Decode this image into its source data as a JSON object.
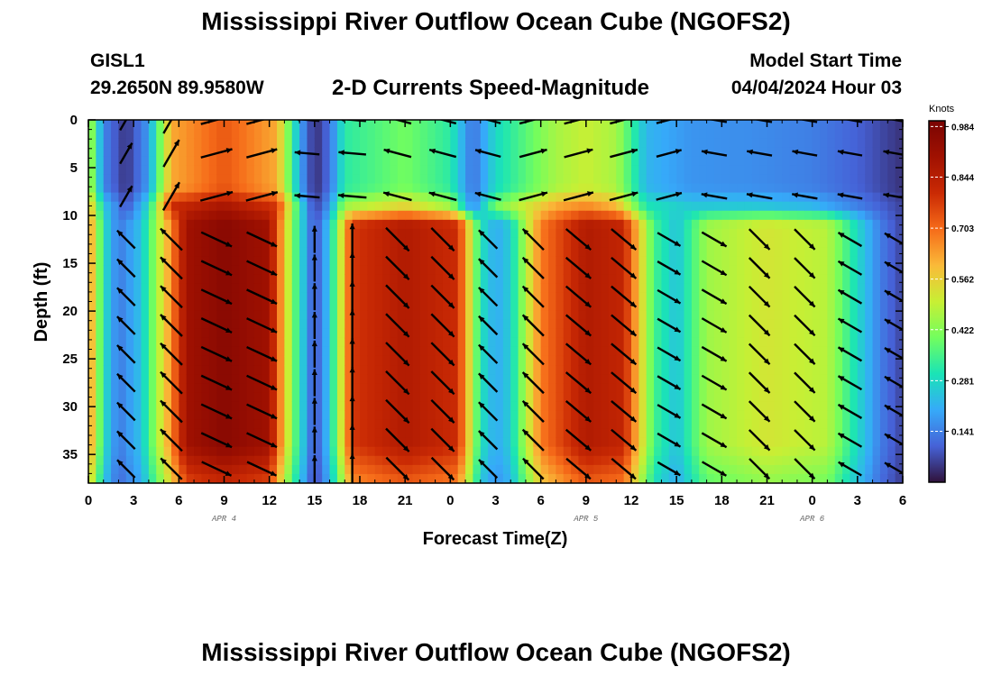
{
  "header": {
    "title": "Mississippi River Outflow Ocean Cube (NGOFS2)",
    "station": "GISL1",
    "coords": "29.2650N  89.9580W",
    "subtitle": "2-D Currents Speed-Magnitude",
    "model_start_label": "Model Start Time",
    "model_start_value": "04/04/2024 Hour 03"
  },
  "footer": {
    "title": "Mississippi River Outflow Ocean Cube (NGOFS2)"
  },
  "chart_data": {
    "type": "heatmap",
    "xlabel": "Forecast Time(Z)",
    "ylabel": "Depth (ft)",
    "x_tick_labels": [
      "0",
      "3",
      "6",
      "9",
      "12",
      "15",
      "18",
      "21",
      "0",
      "3",
      "6",
      "9",
      "12",
      "15",
      "18",
      "21",
      "0",
      "3",
      "6"
    ],
    "date_labels": [
      {
        "text": "APR 4",
        "hour": 9
      },
      {
        "text": "APR 5",
        "hour": 33
      },
      {
        "text": "APR 6",
        "hour": 48
      }
    ],
    "xlim": [
      0,
      54
    ],
    "y_ticks": [
      0,
      5,
      10,
      15,
      20,
      25,
      30,
      35
    ],
    "ylim": [
      0,
      38
    ],
    "y_inverted": true,
    "colorbar": {
      "title": "Knots",
      "ticks": [
        0.984,
        0.844,
        0.703,
        0.562,
        0.422,
        0.281,
        0.141
      ],
      "range": [
        0,
        1.0
      ],
      "colormap": "turbo"
    },
    "layers": [
      {
        "depth_top": 0,
        "depth_bottom": 8.5,
        "speed_at_hour": [
          [
            0,
            0.5
          ],
          [
            1,
            0.15
          ],
          [
            2.5,
            0.04
          ],
          [
            4,
            0.18
          ],
          [
            5.5,
            0.62
          ],
          [
            9,
            0.73
          ],
          [
            12.5,
            0.62
          ],
          [
            14,
            0.2
          ],
          [
            15,
            0.03
          ],
          [
            16,
            0.12
          ],
          [
            17,
            0.32
          ],
          [
            21,
            0.4
          ],
          [
            24,
            0.32
          ],
          [
            25.5,
            0.12
          ],
          [
            27,
            0.28
          ],
          [
            31,
            0.46
          ],
          [
            33,
            0.5
          ],
          [
            35,
            0.46
          ],
          [
            37,
            0.22
          ],
          [
            40,
            0.17
          ],
          [
            44,
            0.16
          ],
          [
            48,
            0.14
          ],
          [
            51,
            0.1
          ],
          [
            54,
            0.04
          ]
        ]
      },
      {
        "depth_top": 8.5,
        "depth_bottom": 11,
        "speed_at_hour": [
          [
            0,
            0.62
          ],
          [
            1,
            0.25
          ],
          [
            2.5,
            0.08
          ],
          [
            4,
            0.28
          ],
          [
            5.5,
            0.8
          ],
          [
            9,
            0.88
          ],
          [
            12.5,
            0.78
          ],
          [
            14,
            0.3
          ],
          [
            15,
            0.05
          ],
          [
            16,
            0.18
          ],
          [
            17,
            0.45
          ],
          [
            21,
            0.55
          ],
          [
            24,
            0.45
          ],
          [
            25.5,
            0.15
          ],
          [
            27,
            0.4
          ],
          [
            31,
            0.62
          ],
          [
            33,
            0.66
          ],
          [
            35,
            0.6
          ],
          [
            37,
            0.3
          ],
          [
            40,
            0.25
          ],
          [
            44,
            0.25
          ],
          [
            48,
            0.22
          ],
          [
            51,
            0.14
          ],
          [
            54,
            0.06
          ]
        ]
      },
      {
        "depth_top": 11,
        "depth_bottom": 38,
        "speed_at_hour": [
          [
            0,
            0.68
          ],
          [
            1,
            0.3
          ],
          [
            2,
            0.13
          ],
          [
            3.5,
            0.24
          ],
          [
            5,
            0.55
          ],
          [
            6.5,
            0.9
          ],
          [
            9,
            0.96
          ],
          [
            12,
            0.9
          ],
          [
            13.5,
            0.42
          ],
          [
            15,
            0.07
          ],
          [
            16,
            0.25
          ],
          [
            17.5,
            0.78
          ],
          [
            21,
            0.86
          ],
          [
            24.5,
            0.8
          ],
          [
            26,
            0.3
          ],
          [
            27,
            0.2
          ],
          [
            28,
            0.26
          ],
          [
            30,
            0.68
          ],
          [
            33,
            0.86
          ],
          [
            35.5,
            0.82
          ],
          [
            37.5,
            0.35
          ],
          [
            39,
            0.24
          ],
          [
            41,
            0.45
          ],
          [
            45,
            0.52
          ],
          [
            49,
            0.48
          ],
          [
            51,
            0.28
          ],
          [
            52.5,
            0.14
          ],
          [
            54,
            0.06
          ]
        ]
      }
    ],
    "surface_layer_direction_deg": [
      {
        "hour": 2.5,
        "dir_from_east": 60
      },
      {
        "hour": 9,
        "dir_from_east": 15
      },
      {
        "hour": 15,
        "dir_from_east": 175
      },
      {
        "hour": 21,
        "dir_from_east": 165
      },
      {
        "hour": 33,
        "dir_from_east": 15
      },
      {
        "hour": 45,
        "dir_from_east": 170
      },
      {
        "hour": 51,
        "dir_from_east": 170
      }
    ],
    "deep_layer_direction_deg": [
      {
        "hour": 2.5,
        "dir_from_east": 135,
        "note": "toward lower-left to upper-left (NW)"
      },
      {
        "hour": 9,
        "dir_from_east": -25,
        "note": "toward ESE"
      },
      {
        "hour": 15,
        "dir_from_east": 90,
        "note": "north"
      },
      {
        "hour": 21,
        "dir_from_east": -45,
        "note": "toward SE"
      },
      {
        "hour": 27,
        "dir_from_east": 135,
        "note": "toward NW"
      },
      {
        "hour": 33,
        "dir_from_east": -40,
        "note": "toward SE"
      },
      {
        "hour": 39,
        "dir_from_east": -30,
        "note": "toward SE"
      },
      {
        "hour": 45,
        "dir_from_east": -45,
        "note": "toward SE"
      },
      {
        "hour": 53,
        "dir_from_east": 150,
        "note": "toward NW"
      }
    ]
  }
}
